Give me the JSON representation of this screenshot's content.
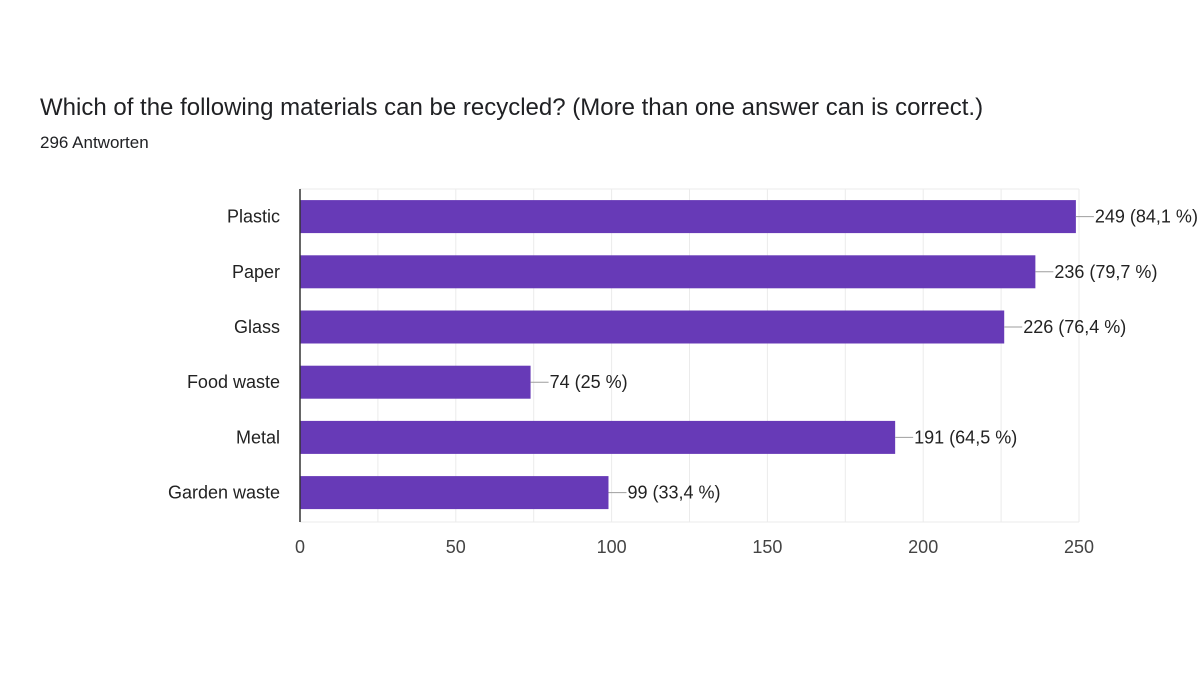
{
  "question": {
    "title": "Which of the following materials can be recycled? (More than one answer can is correct.)",
    "responses": "296 Antworten"
  },
  "colors": {
    "bar": "#673ab7",
    "grid": "#ebebeb",
    "axis": "#333333",
    "leader": "#9e9e9e"
  },
  "chart_data": {
    "type": "bar",
    "orientation": "horizontal",
    "categories": [
      "Plastic",
      "Paper",
      "Glass",
      "Food waste",
      "Metal",
      "Garden waste"
    ],
    "values": [
      249,
      236,
      226,
      74,
      191,
      99
    ],
    "data_labels": [
      "249 (84,1 %)",
      "236 (79,7 %)",
      "226 (76,4 %)",
      "74 (25 %)",
      "191 (64,5 %)",
      "99 (33,4 %)"
    ],
    "xlim": [
      0,
      250
    ],
    "xticks": [
      "0",
      "50",
      "100",
      "150",
      "200",
      "250"
    ],
    "grid": true,
    "legend": false
  }
}
